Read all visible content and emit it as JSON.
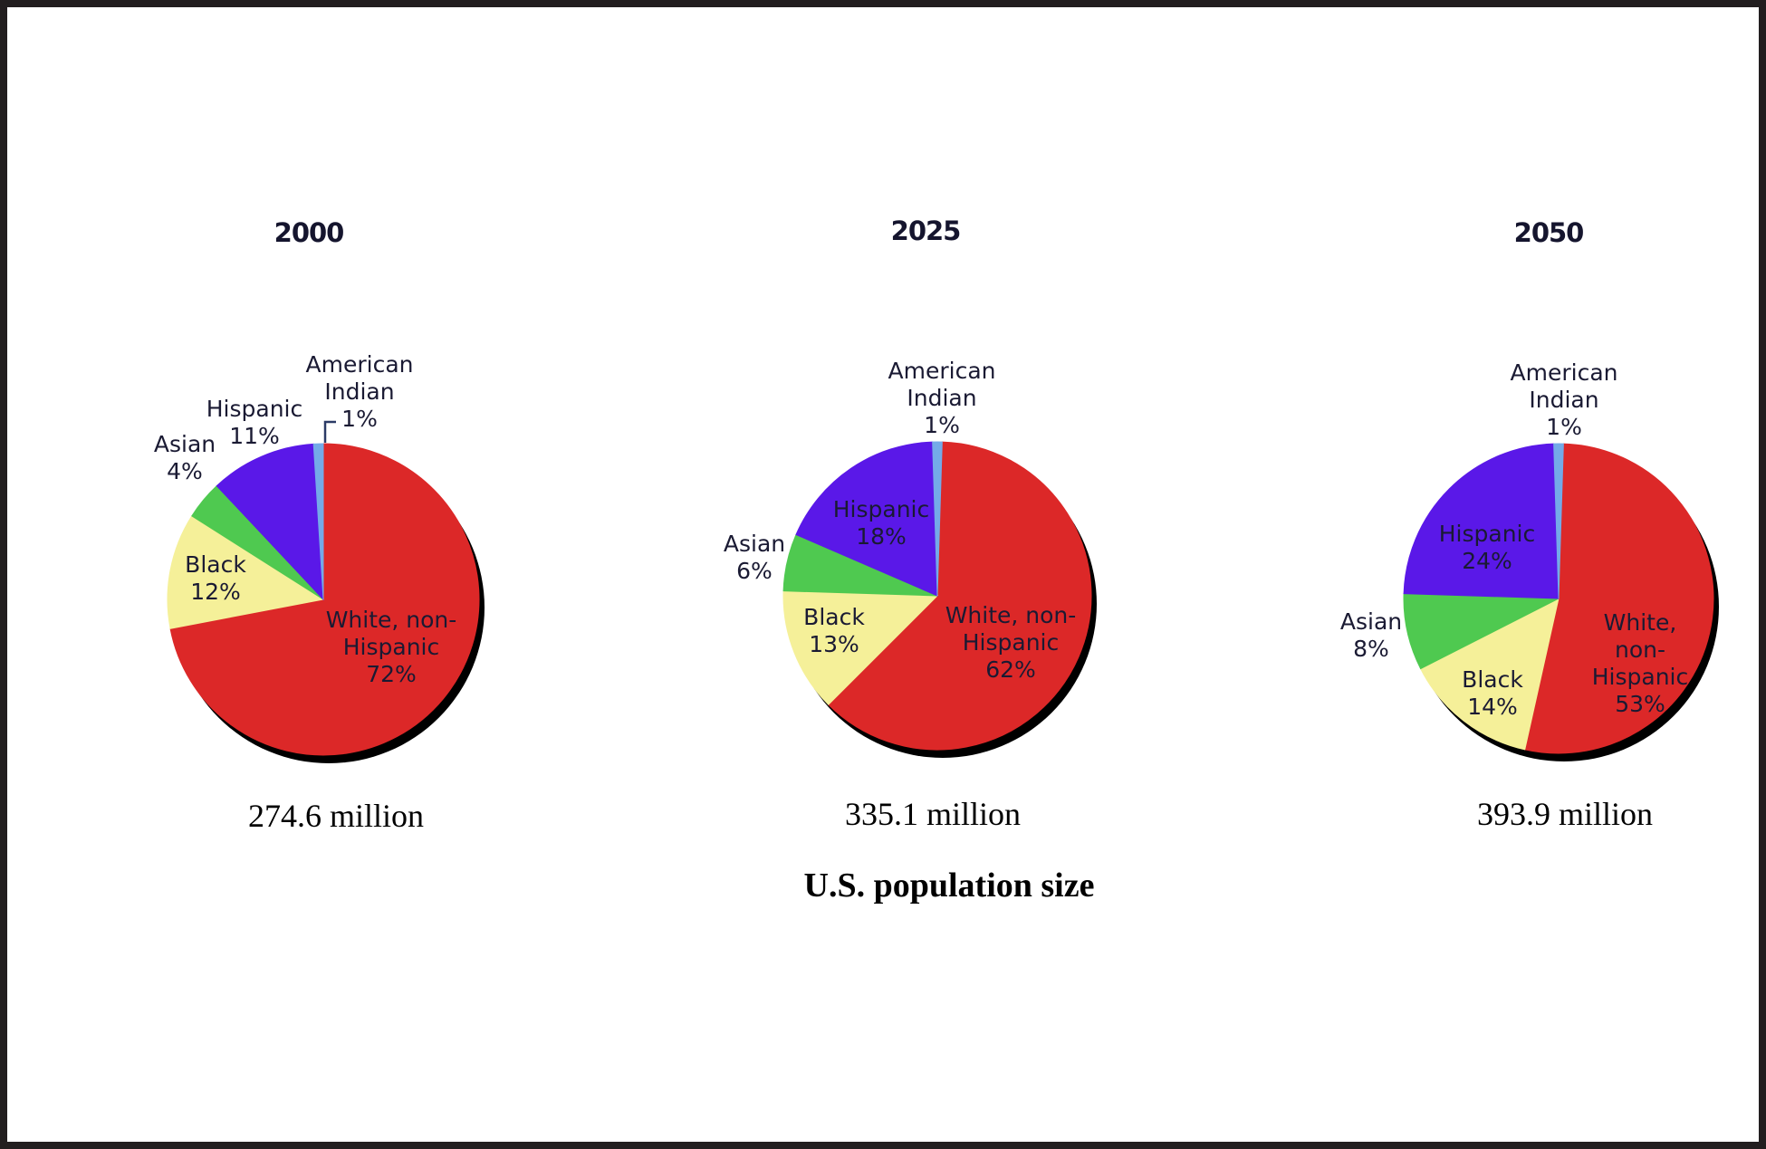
{
  "figure": {
    "caption_title": "U.S. population size"
  },
  "charts": [
    {
      "year": "2000",
      "total": "274.6 million",
      "labels": {
        "american_indian": "American\nIndian\n1%",
        "hispanic": "Hispanic\n11%",
        "asian": "Asian\n4%",
        "black": "Black\n12%",
        "white": "White, non-\nHispanic\n72%"
      }
    },
    {
      "year": "2025",
      "total": "335.1 million",
      "labels": {
        "american_indian": "American\nIndian\n1%",
        "hispanic": "Hispanic\n18%",
        "asian": "Asian\n6%",
        "black": "Black\n13%",
        "white": "White, non-\nHispanic\n62%"
      }
    },
    {
      "year": "2050",
      "total": "393.9 million",
      "labels": {
        "american_indian": "American\nIndian\n1%",
        "hispanic": "Hispanic\n24%",
        "asian": "Asian\n8%",
        "black": "Black\n14%",
        "white": "White, non-\nHispanic\n53%"
      }
    }
  ],
  "chart_data": [
    {
      "type": "pie",
      "title": "2000",
      "caption": "274.6 million",
      "labels": [
        "White, non-Hispanic",
        "Black",
        "Asian",
        "Hispanic",
        "American Indian"
      ],
      "values": [
        72,
        12,
        4,
        11,
        1
      ],
      "colors": [
        "#dc2828",
        "#f5f099",
        "#4fc950",
        "#5a18e8",
        "#74aae8"
      ],
      "units": "percent",
      "slice_order": "clockwise-from-top",
      "shadow": "#000000"
    },
    {
      "type": "pie",
      "title": "2025",
      "caption": "335.1 million",
      "labels": [
        "White, non-Hispanic",
        "Black",
        "Asian",
        "Hispanic",
        "American Indian"
      ],
      "values": [
        62,
        13,
        6,
        18,
        1
      ],
      "colors": [
        "#dc2828",
        "#f5f099",
        "#4fc950",
        "#5a18e8",
        "#74aae8"
      ],
      "units": "percent",
      "slice_order": "clockwise-from-top",
      "shadow": "#000000"
    },
    {
      "type": "pie",
      "title": "2050",
      "caption": "393.9 million",
      "labels": [
        "White, non-Hispanic",
        "Black",
        "Asian",
        "Hispanic",
        "American Indian"
      ],
      "values": [
        53,
        14,
        8,
        24,
        1
      ],
      "colors": [
        "#dc2828",
        "#f5f099",
        "#4fc950",
        "#5a18e8",
        "#74aae8"
      ],
      "units": "percent",
      "slice_order": "clockwise-from-top",
      "shadow": "#000000"
    }
  ],
  "colors": {
    "white_non_hispanic": "#dc2828",
    "black": "#f5f099",
    "asian": "#4fc950",
    "hispanic": "#5a18e8",
    "american_indian": "#74aae8",
    "frame_border": "#221e1f",
    "label_text": "#1a1a33",
    "leader_line": "#2b3a66"
  }
}
